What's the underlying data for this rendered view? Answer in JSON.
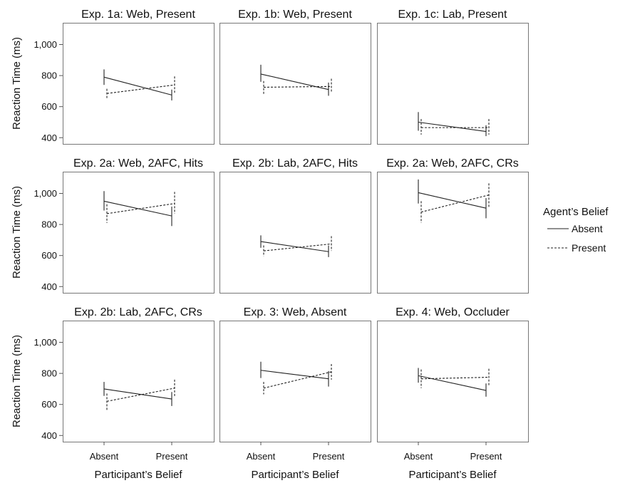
{
  "chart_data": {
    "type": "line",
    "layout": "3x3 small multiples with shared axes",
    "ylabel": "Reaction Time (ms)",
    "xlabel": "Participant’s Belief",
    "categories": [
      "Absent",
      "Present"
    ],
    "yticks": [
      400,
      600,
      800,
      1000
    ],
    "ytick_labels": [
      "400",
      "600",
      "800",
      "1,000"
    ],
    "ylim": [
      360,
      1140
    ],
    "legend": {
      "title": "Agent’s Belief",
      "placement": "right",
      "entries": [
        {
          "name": "Absent",
          "style": "solid"
        },
        {
          "name": "Present",
          "style": "dashed"
        }
      ]
    },
    "panels": [
      {
        "title": "Exp. 1a: Web, Present",
        "series": [
          {
            "name": "Absent",
            "values": [
              790,
              675
            ],
            "lower": [
              740,
              640
            ],
            "upper": [
              840,
              710
            ]
          },
          {
            "name": "Present",
            "values": [
              685,
              740
            ],
            "lower": [
              650,
              690
            ],
            "upper": [
              715,
              795
            ]
          }
        ]
      },
      {
        "title": "Exp. 1b: Web, Present",
        "series": [
          {
            "name": "Absent",
            "values": [
              810,
              710
            ],
            "lower": [
              760,
              670
            ],
            "upper": [
              870,
              755
            ]
          },
          {
            "name": "Present",
            "values": [
              725,
              730
            ],
            "lower": [
              680,
              690
            ],
            "upper": [
              765,
              780
            ]
          }
        ]
      },
      {
        "title": "Exp. 1c: Lab, Present",
        "series": [
          {
            "name": "Absent",
            "values": [
              500,
              440
            ],
            "lower": [
              445,
              410
            ],
            "upper": [
              565,
              480
            ]
          },
          {
            "name": "Present",
            "values": [
              465,
              465
            ],
            "lower": [
              420,
              420
            ],
            "upper": [
              520,
              520
            ]
          }
        ]
      },
      {
        "title": "Exp. 2a: Web, 2AFC, Hits",
        "series": [
          {
            "name": "Absent",
            "values": [
              950,
              855
            ],
            "lower": [
              890,
              790
            ],
            "upper": [
              1015,
              915
            ]
          },
          {
            "name": "Present",
            "values": [
              870,
              935
            ],
            "lower": [
              810,
              870
            ],
            "upper": [
              930,
              1010
            ]
          }
        ]
      },
      {
        "title": "Exp. 2b: Lab, 2AFC, Hits",
        "series": [
          {
            "name": "Absent",
            "values": [
              690,
              625
            ],
            "lower": [
              650,
              590
            ],
            "upper": [
              730,
              665
            ]
          },
          {
            "name": "Present",
            "values": [
              630,
              675
            ],
            "lower": [
              595,
              630
            ],
            "upper": [
              665,
              725
            ]
          }
        ]
      },
      {
        "title": "Exp. 2a: Web, 2AFC, CRs",
        "series": [
          {
            "name": "Absent",
            "values": [
              1005,
              905
            ],
            "lower": [
              935,
              840
            ],
            "upper": [
              1090,
              970
            ]
          },
          {
            "name": "Present",
            "values": [
              880,
              990
            ],
            "lower": [
              810,
              910
            ],
            "upper": [
              950,
              1065
            ]
          }
        ]
      },
      {
        "title": "Exp. 2b: Lab, 2AFC, CRs",
        "series": [
          {
            "name": "Absent",
            "values": [
              700,
              635
            ],
            "lower": [
              655,
              590
            ],
            "upper": [
              745,
              680
            ]
          },
          {
            "name": "Present",
            "values": [
              620,
              705
            ],
            "lower": [
              565,
              650
            ],
            "upper": [
              670,
              760
            ]
          }
        ]
      },
      {
        "title": "Exp. 3: Web, Absent",
        "series": [
          {
            "name": "Absent",
            "values": [
              820,
              765
            ],
            "lower": [
              770,
              715
            ],
            "upper": [
              875,
              815
            ]
          },
          {
            "name": "Present",
            "values": [
              705,
              810
            ],
            "lower": [
              665,
              760
            ],
            "upper": [
              745,
              860
            ]
          }
        ]
      },
      {
        "title": "Exp. 4: Web, Occluder",
        "series": [
          {
            "name": "Absent",
            "values": [
              785,
              690
            ],
            "lower": [
              740,
              650
            ],
            "upper": [
              835,
              735
            ]
          },
          {
            "name": "Present",
            "values": [
              765,
              775
            ],
            "lower": [
              705,
              720
            ],
            "upper": [
              825,
              830
            ]
          }
        ]
      }
    ]
  }
}
